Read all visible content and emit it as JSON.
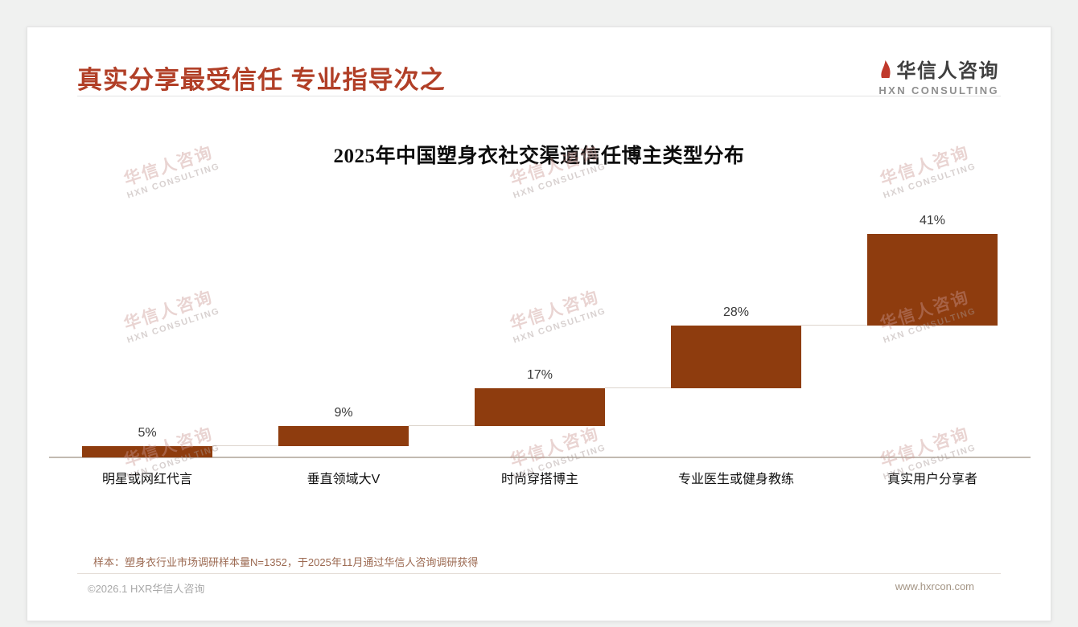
{
  "header": {
    "title": "真实分享最受信任 专业指导次之",
    "logo": {
      "name": "华信人咨询",
      "subtitle": "HXN CONSULTING",
      "mark_color": "#c0392b"
    }
  },
  "watermark": {
    "line1": "华信人咨询",
    "line2": "HXN CONSULTING"
  },
  "chart_data": {
    "type": "bar",
    "variant": "waterfall-steps",
    "title": "2025年中国塑身衣社交渠道信任博主类型分布",
    "categories": [
      "明星或网红代言",
      "垂直领域大V",
      "时尚穿搭博主",
      "专业医生或健身教练",
      "真实用户分享者"
    ],
    "values": [
      5,
      9,
      17,
      28,
      41
    ],
    "value_labels": [
      "5%",
      "9%",
      "17%",
      "28%",
      "41%"
    ],
    "unit": "%",
    "ylim": [
      0,
      100
    ],
    "grid": "off",
    "legend": "none",
    "bar_color": "#8e3c0e",
    "baseline_color": "#c2bab1"
  },
  "footer": {
    "note": "样本：塑身衣行业市场调研样本量N=1352，于2025年11月通过华信人咨询调研获得",
    "copyright": "©2026.1 HXR华信人咨询",
    "website": "www.hxrcon.com"
  }
}
